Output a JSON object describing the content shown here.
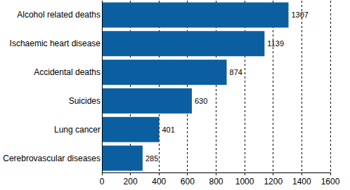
{
  "chart_data": {
    "type": "bar",
    "orientation": "horizontal",
    "categories": [
      "Alcohol related deaths",
      "Ischaemic heart disease",
      "Accidental deaths",
      "Suicides",
      "Lung cancer",
      "Cerebrovascular diseases"
    ],
    "values": [
      1307,
      1139,
      874,
      630,
      401,
      285
    ],
    "color": "#0b5fa0",
    "xlim": [
      0,
      1600
    ],
    "xticks": [
      0,
      200,
      400,
      600,
      800,
      1000,
      1200,
      1400,
      1600
    ],
    "grid": true,
    "data_labels": true
  }
}
